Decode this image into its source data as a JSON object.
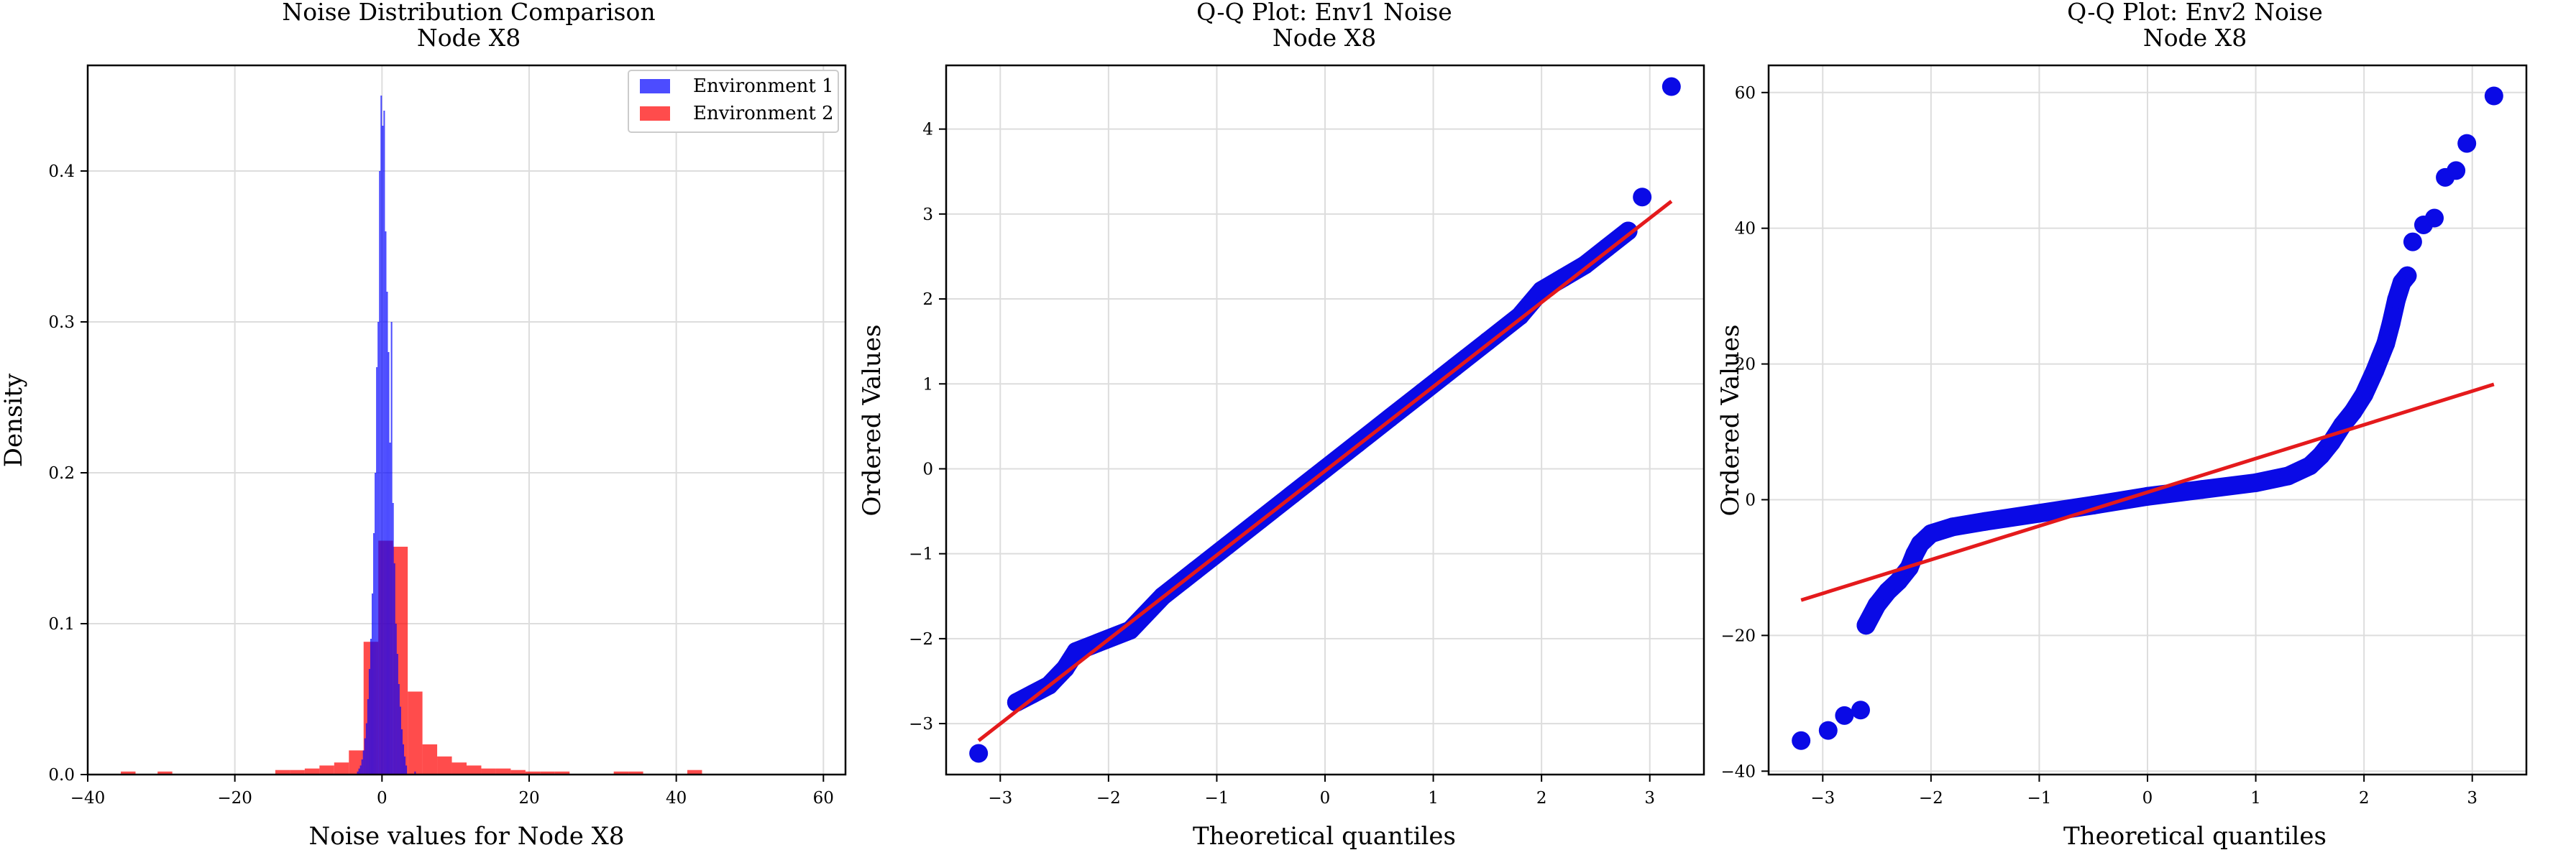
{
  "colors": {
    "env1": "#0000ff",
    "env2": "#ff0000",
    "fit_line": "#e41a1c",
    "qq_points": "#0a0ae6",
    "grid": "#dddddd"
  },
  "chart_data": [
    {
      "type": "histogram",
      "title": "Noise Distribution Comparison",
      "subtitle": "Node X8",
      "xlabel": "Noise values for Node X8",
      "ylabel": "Density",
      "xlim": [
        -40,
        63
      ],
      "ylim": [
        0,
        0.47
      ],
      "xticks": [
        -40,
        -20,
        0,
        20,
        40,
        60
      ],
      "yticks": [
        0.0,
        0.1,
        0.2,
        0.3,
        0.4
      ],
      "grid": true,
      "legend_position": "top-right",
      "series": [
        {
          "name": "Environment 1",
          "color": "#0000ff",
          "bins": [
            [
              -3.4,
              0.002
            ],
            [
              -3.2,
              0.004
            ],
            [
              -3.0,
              0.006
            ],
            [
              -2.8,
              0.01
            ],
            [
              -2.6,
              0.016
            ],
            [
              -2.4,
              0.024
            ],
            [
              -2.2,
              0.034
            ],
            [
              -2.0,
              0.05
            ],
            [
              -1.8,
              0.07
            ],
            [
              -1.6,
              0.09
            ],
            [
              -1.4,
              0.12
            ],
            [
              -1.2,
              0.16
            ],
            [
              -1.0,
              0.2
            ],
            [
              -0.8,
              0.27
            ],
            [
              -0.6,
              0.3
            ],
            [
              -0.4,
              0.4
            ],
            [
              -0.2,
              0.45
            ],
            [
              0.0,
              0.43
            ],
            [
              0.2,
              0.44
            ],
            [
              0.4,
              0.36
            ],
            [
              0.6,
              0.32
            ],
            [
              0.8,
              0.28
            ],
            [
              1.0,
              0.22
            ],
            [
              1.2,
              0.3
            ],
            [
              1.4,
              0.18
            ],
            [
              1.6,
              0.14
            ],
            [
              1.8,
              0.1
            ],
            [
              2.0,
              0.08
            ],
            [
              2.2,
              0.06
            ],
            [
              2.4,
              0.045
            ],
            [
              2.6,
              0.03
            ],
            [
              2.8,
              0.02
            ],
            [
              3.0,
              0.012
            ],
            [
              3.2,
              0.006
            ],
            [
              4.4,
              0.002
            ]
          ],
          "bin_width": 0.2
        },
        {
          "name": "Environment 2",
          "color": "#ff0000",
          "bins": [
            [
              -35.5,
              0.002
            ],
            [
              -30.5,
              0.002
            ],
            [
              -14.5,
              0.003
            ],
            [
              -12.5,
              0.003
            ],
            [
              -10.5,
              0.004
            ],
            [
              -8.5,
              0.006
            ],
            [
              -6.5,
              0.008
            ],
            [
              -4.5,
              0.016
            ],
            [
              -2.5,
              0.088
            ],
            [
              -0.5,
              0.155
            ],
            [
              1.5,
              0.151
            ],
            [
              3.5,
              0.055
            ],
            [
              5.5,
              0.02
            ],
            [
              7.5,
              0.012
            ],
            [
              9.5,
              0.008
            ],
            [
              11.5,
              0.006
            ],
            [
              13.5,
              0.004
            ],
            [
              15.5,
              0.004
            ],
            [
              17.5,
              0.003
            ],
            [
              19.5,
              0.002
            ],
            [
              21.5,
              0.002
            ],
            [
              23.5,
              0.002
            ],
            [
              31.5,
              0.002
            ],
            [
              33.5,
              0.002
            ],
            [
              41.5,
              0.003
            ]
          ],
          "bin_width": 2.0
        }
      ]
    },
    {
      "type": "scatter",
      "title": "Q-Q Plot: Env1 Noise",
      "subtitle": "Node X8",
      "xlabel": "Theoretical quantiles",
      "ylabel": "Ordered Values",
      "xlim": [
        -3.5,
        3.5
      ],
      "ylim": [
        -3.6,
        4.75
      ],
      "xticks": [
        -3,
        -2,
        -1,
        0,
        1,
        2,
        3
      ],
      "yticks": [
        -3,
        -2,
        -1,
        0,
        1,
        2,
        3,
        4
      ],
      "grid": true,
      "fit_line": {
        "x": [
          -3.2,
          3.2
        ],
        "y": [
          -3.2,
          3.15
        ]
      },
      "quantile_curve": [
        [
          -2.85,
          -2.75
        ],
        [
          -2.7,
          -2.65
        ],
        [
          -2.55,
          -2.55
        ],
        [
          -2.4,
          -2.35
        ],
        [
          -2.3,
          -2.15
        ],
        [
          -2.1,
          -2.05
        ],
        [
          -1.8,
          -1.9
        ],
        [
          -1.5,
          -1.5
        ],
        [
          -1.2,
          -1.2
        ],
        [
          -0.9,
          -0.9
        ],
        [
          -0.6,
          -0.6
        ],
        [
          -0.3,
          -0.3
        ],
        [
          0.0,
          0.0
        ],
        [
          0.3,
          0.3
        ],
        [
          0.6,
          0.6
        ],
        [
          0.9,
          0.9
        ],
        [
          1.2,
          1.2
        ],
        [
          1.5,
          1.5
        ],
        [
          1.8,
          1.8
        ],
        [
          2.0,
          2.1
        ],
        [
          2.2,
          2.25
        ],
        [
          2.4,
          2.4
        ],
        [
          2.6,
          2.6
        ],
        [
          2.8,
          2.8
        ]
      ],
      "outliers": [
        [
          -3.2,
          -3.35
        ],
        [
          2.93,
          3.2
        ],
        [
          3.2,
          4.5
        ]
      ]
    },
    {
      "type": "scatter",
      "title": "Q-Q Plot: Env2 Noise",
      "subtitle": "Node X8",
      "xlabel": "Theoretical quantiles",
      "ylabel": "Ordered Values",
      "xlim": [
        -3.5,
        3.5
      ],
      "ylim": [
        -40.5,
        64
      ],
      "xticks": [
        -3,
        -2,
        -1,
        0,
        1,
        2,
        3
      ],
      "yticks": [
        -40,
        -20,
        0,
        20,
        40,
        60
      ],
      "grid": true,
      "fit_line": {
        "x": [
          -3.2,
          3.2
        ],
        "y": [
          -14.8,
          17.0
        ]
      },
      "quantile_curve": [
        [
          -2.6,
          -18.5
        ],
        [
          -2.5,
          -15.5
        ],
        [
          -2.4,
          -13.5
        ],
        [
          -2.3,
          -12.0
        ],
        [
          -2.2,
          -10.0
        ],
        [
          -2.15,
          -8.0
        ],
        [
          -2.1,
          -6.5
        ],
        [
          -2.0,
          -5.0
        ],
        [
          -1.8,
          -4.0
        ],
        [
          -1.5,
          -3.2
        ],
        [
          -1.0,
          -2.0
        ],
        [
          -0.5,
          -0.8
        ],
        [
          0.0,
          0.5
        ],
        [
          0.5,
          1.5
        ],
        [
          1.0,
          2.5
        ],
        [
          1.3,
          3.5
        ],
        [
          1.5,
          5.0
        ],
        [
          1.6,
          6.5
        ],
        [
          1.7,
          8.5
        ],
        [
          1.8,
          11.0
        ],
        [
          1.9,
          13.0
        ],
        [
          2.0,
          15.5
        ],
        [
          2.1,
          19.0
        ],
        [
          2.15,
          21.0
        ],
        [
          2.2,
          23.0
        ],
        [
          2.25,
          26.0
        ],
        [
          2.3,
          29.5
        ],
        [
          2.35,
          32.0
        ],
        [
          2.4,
          33.0
        ]
      ],
      "outliers": [
        [
          -3.2,
          -35.5
        ],
        [
          -2.95,
          -34.0
        ],
        [
          -2.8,
          -31.8
        ],
        [
          -2.65,
          -31.0
        ],
        [
          2.45,
          38.0
        ],
        [
          2.55,
          40.5
        ],
        [
          2.65,
          41.5
        ],
        [
          2.75,
          47.5
        ],
        [
          2.85,
          48.5
        ],
        [
          2.95,
          52.5
        ],
        [
          3.2,
          59.5
        ]
      ]
    }
  ]
}
